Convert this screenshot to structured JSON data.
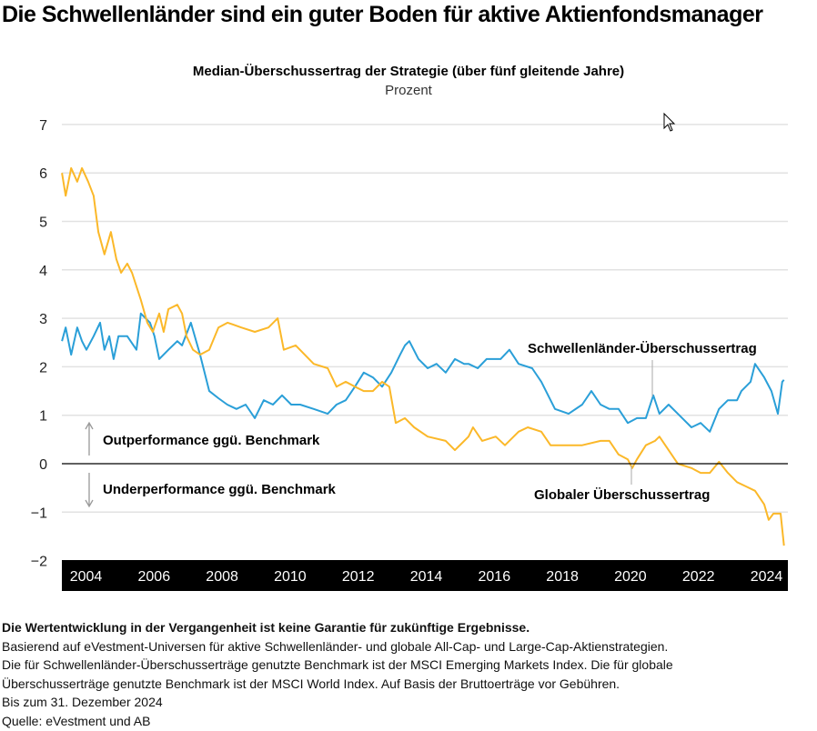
{
  "title": "Die Schwellenländer sind ein guter Boden für aktive Aktienfondsmanager",
  "chart_data": {
    "type": "line",
    "title": "Median-Überschussertrag der Strategie (über fünf gleitende Jahre)",
    "unit": "Prozent",
    "ylim": [
      -2,
      7
    ],
    "yticks": [
      "−2",
      "−1",
      "0",
      "1",
      "2",
      "3",
      "4",
      "5",
      "6",
      "7"
    ],
    "xticks": [
      "2004",
      "2006",
      "2008",
      "2010",
      "2012",
      "2014",
      "2016",
      "2018",
      "2020",
      "2022",
      "2024"
    ],
    "grid": true,
    "annotations": {
      "up": "Outperformance ggü. Benchmark",
      "down": "Underperformance ggü. Benchmark"
    },
    "colors": {
      "emerging": "#2a9fd8",
      "global": "#fbb829"
    },
    "series": [
      {
        "name": "Schwellenländer-Überschussertrag",
        "key": "emerging",
        "x": [
          2003.78,
          2003.89,
          2004.05,
          2004.23,
          2004.37,
          2004.5,
          2004.71,
          2004.9,
          2005.03,
          2005.17,
          2005.3,
          2005.44,
          2005.7,
          2005.97,
          2006.1,
          2006.37,
          2006.5,
          2006.64,
          2006.91,
          2007.17,
          2007.31,
          2007.57,
          2007.84,
          2008.11,
          2008.38,
          2008.64,
          2008.91,
          2009.18,
          2009.45,
          2009.71,
          2009.98,
          2010.25,
          2010.52,
          2010.78,
          2011.18,
          2011.59,
          2011.85,
          2012.12,
          2012.39,
          2012.65,
          2012.92,
          2013.19,
          2013.46,
          2013.72,
          2013.86,
          2013.99,
          2014.26,
          2014.53,
          2014.79,
          2015.06,
          2015.33,
          2015.6,
          2015.73,
          2016.0,
          2016.26,
          2016.67,
          2016.93,
          2017.2,
          2017.6,
          2017.87,
          2018.27,
          2018.67,
          2019.07,
          2019.34,
          2019.61,
          2019.87,
          2020.14,
          2020.41,
          2020.68,
          2020.94,
          2021.16,
          2021.34,
          2021.61,
          2022.01,
          2022.28,
          2022.55,
          2022.82,
          2023.09,
          2023.35,
          2023.62,
          2023.75,
          2024.02,
          2024.15,
          2024.42,
          2024.63,
          2024.82,
          2024.95,
          2025.0
        ],
        "y": [
          2.53,
          2.81,
          2.25,
          2.81,
          2.53,
          2.35,
          2.63,
          2.91,
          2.35,
          2.63,
          2.16,
          2.63,
          2.63,
          2.35,
          3.1,
          2.91,
          2.63,
          2.16,
          2.35,
          2.53,
          2.44,
          2.91,
          2.25,
          1.5,
          1.35,
          1.22,
          1.13,
          1.22,
          0.94,
          1.31,
          1.22,
          1.41,
          1.22,
          1.22,
          1.13,
          1.03,
          1.22,
          1.31,
          1.59,
          1.88,
          1.78,
          1.59,
          1.88,
          2.25,
          2.44,
          2.53,
          2.16,
          1.97,
          2.06,
          1.88,
          2.16,
          2.06,
          2.06,
          1.97,
          2.16,
          2.16,
          2.35,
          2.06,
          1.97,
          1.69,
          1.13,
          1.03,
          1.22,
          1.5,
          1.22,
          1.13,
          1.13,
          0.84,
          0.94,
          0.94,
          1.41,
          1.03,
          1.22,
          0.94,
          0.75,
          0.84,
          0.66,
          1.13,
          1.31,
          1.31,
          1.5,
          1.69,
          2.06,
          1.78,
          1.5,
          1.03,
          1.69,
          1.73
        ]
      },
      {
        "name": "Globaler Überschussertrag",
        "key": "global",
        "x": [
          2003.78,
          2003.89,
          2004.05,
          2004.23,
          2004.37,
          2004.55,
          2004.71,
          2004.85,
          2005.03,
          2005.22,
          2005.38,
          2005.52,
          2005.7,
          2005.84,
          2006.1,
          2006.29,
          2006.45,
          2006.64,
          2006.77,
          2006.91,
          2007.17,
          2007.31,
          2007.44,
          2007.63,
          2007.84,
          2008.11,
          2008.38,
          2008.65,
          2009.05,
          2009.45,
          2009.85,
          2010.12,
          2010.3,
          2010.65,
          2011.18,
          2011.59,
          2011.85,
          2012.12,
          2012.39,
          2012.65,
          2012.92,
          2013.19,
          2013.4,
          2013.59,
          2013.86,
          2014.13,
          2014.53,
          2015.06,
          2015.33,
          2015.73,
          2015.86,
          2016.13,
          2016.53,
          2016.8,
          2017.2,
          2017.47,
          2017.87,
          2018.14,
          2018.54,
          2019.07,
          2019.61,
          2019.87,
          2020.14,
          2020.41,
          2020.54,
          2020.68,
          2020.94,
          2021.21,
          2021.34,
          2021.61,
          2021.88,
          2022.28,
          2022.55,
          2022.82,
          2023.09,
          2023.35,
          2023.62,
          2023.89,
          2024.15,
          2024.42,
          2024.55,
          2024.69,
          2024.9,
          2025.0
        ],
        "y": [
          6.0,
          5.53,
          6.1,
          5.82,
          6.1,
          5.82,
          5.53,
          4.78,
          4.32,
          4.78,
          4.22,
          3.94,
          4.13,
          3.94,
          3.38,
          2.91,
          2.72,
          3.1,
          2.72,
          3.19,
          3.28,
          3.1,
          2.63,
          2.35,
          2.25,
          2.35,
          2.81,
          2.91,
          2.81,
          2.72,
          2.81,
          3.0,
          2.35,
          2.44,
          2.06,
          1.97,
          1.59,
          1.69,
          1.59,
          1.5,
          1.5,
          1.69,
          1.59,
          0.84,
          0.94,
          0.75,
          0.56,
          0.47,
          0.28,
          0.56,
          0.75,
          0.47,
          0.56,
          0.38,
          0.66,
          0.75,
          0.66,
          0.38,
          0.38,
          0.38,
          0.47,
          0.47,
          0.19,
          0.09,
          -0.09,
          0.09,
          0.38,
          0.47,
          0.56,
          0.28,
          0,
          -0.09,
          -0.19,
          -0.19,
          0.04,
          -0.19,
          -0.38,
          -0.47,
          -0.56,
          -0.84,
          -1.16,
          -1.03,
          -1.03,
          -1.69
        ]
      }
    ]
  },
  "footer": {
    "disclaimer": "Die Wertentwicklung in der Vergangenheit ist keine Garantie für zukünftige Ergebnisse.",
    "lines": [
      "Basierend auf eVestment-Universen für aktive Schwellenländer- und globale All-Cap- und Large-Cap-Aktienstrategien.",
      "Die für Schwellenländer-Überschusserträge genutzte Benchmark ist der MSCI Emerging Markets Index. Die für globale",
      "Überschusserträge genutzte Benchmark ist der MSCI World Index. Auf Basis der Bruttoerträge vor Gebühren.",
      "Bis zum 31. Dezember 2024",
      "Quelle: eVestment und AB"
    ]
  }
}
